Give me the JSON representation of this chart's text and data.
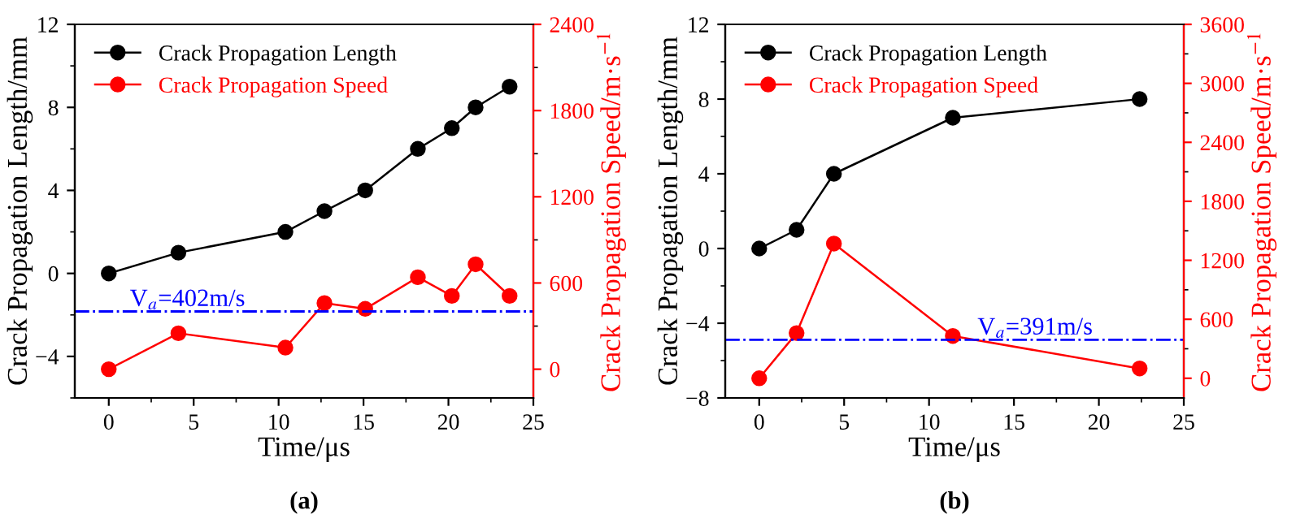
{
  "chart_data": [
    {
      "type": "line",
      "title": "(a)",
      "xlabel": "Time/μs",
      "ylabel": "Crack Propagation Length/mm",
      "y2label": "Crack Propagation Speed/m·s$^{−1}$",
      "xlim": [
        -2,
        25
      ],
      "xticks": [
        0,
        5,
        10,
        15,
        20,
        25
      ],
      "ylim": [
        -6,
        12
      ],
      "yticks": [
        -4,
        0,
        4,
        8,
        12
      ],
      "y2lim": [
        -200,
        2400
      ],
      "y2ticks": [
        0,
        600,
        1200,
        1800,
        2400
      ],
      "legend": "top left",
      "marker": "circle",
      "line_style": "solid",
      "grid": false,
      "series": [
        {
          "name": "Crack Propagation Length",
          "color": "#000000",
          "x": [
            0,
            4.1,
            10.4,
            12.7,
            15.1,
            18.2,
            20.2,
            21.6,
            23.6
          ],
          "values": [
            0,
            1,
            2,
            3,
            4,
            6,
            7,
            8,
            9
          ]
        },
        {
          "name": "Crack Propagation Speed",
          "color": "#ff0000",
          "axis": "y2",
          "x": [
            0,
            4.1,
            10.4,
            12.7,
            15.1,
            18.2,
            20.2,
            21.6,
            23.6
          ],
          "values": [
            0,
            250,
            150,
            460,
            420,
            640,
            510,
            730,
            510
          ]
        }
      ],
      "ref_lines": [
        {
          "axis": "y2",
          "value": 402,
          "label": "V$_{a}$=402m/s",
          "color": "#0000ff",
          "line_style": "dashdot"
        }
      ]
    },
    {
      "type": "line",
      "title": "(b)",
      "xlabel": "Time/μs",
      "ylabel": "Crack Propagation Length/mm",
      "y2label": "Crack Propagation Speed/m·s$^{−1}$",
      "xlim": [
        -2,
        25
      ],
      "xticks": [
        0,
        5,
        10,
        15,
        20,
        25
      ],
      "ylim": [
        -8,
        12
      ],
      "yticks": [
        -8,
        -4,
        0,
        4,
        8,
        12
      ],
      "y2lim": [
        -200,
        3600
      ],
      "y2ticks": [
        0,
        600,
        1200,
        1800,
        2400,
        3000,
        3600
      ],
      "legend": "top left",
      "marker": "circle",
      "line_style": "solid",
      "grid": false,
      "series": [
        {
          "name": "Crack Propagation Length",
          "color": "#000000",
          "x": [
            0,
            2.2,
            4.4,
            11.4,
            22.4
          ],
          "values": [
            0,
            1,
            4,
            7,
            8
          ]
        },
        {
          "name": "Crack Propagation Speed",
          "color": "#ff0000",
          "axis": "y2",
          "x": [
            0,
            2.2,
            4.4,
            11.4,
            22.4
          ],
          "values": [
            0,
            460,
            1370,
            430,
            100
          ]
        }
      ],
      "ref_lines": [
        {
          "axis": "y2",
          "value": 391,
          "label": "V$_{a}$=391m/s",
          "color": "#0000ff",
          "line_style": "dashdot"
        }
      ]
    }
  ]
}
